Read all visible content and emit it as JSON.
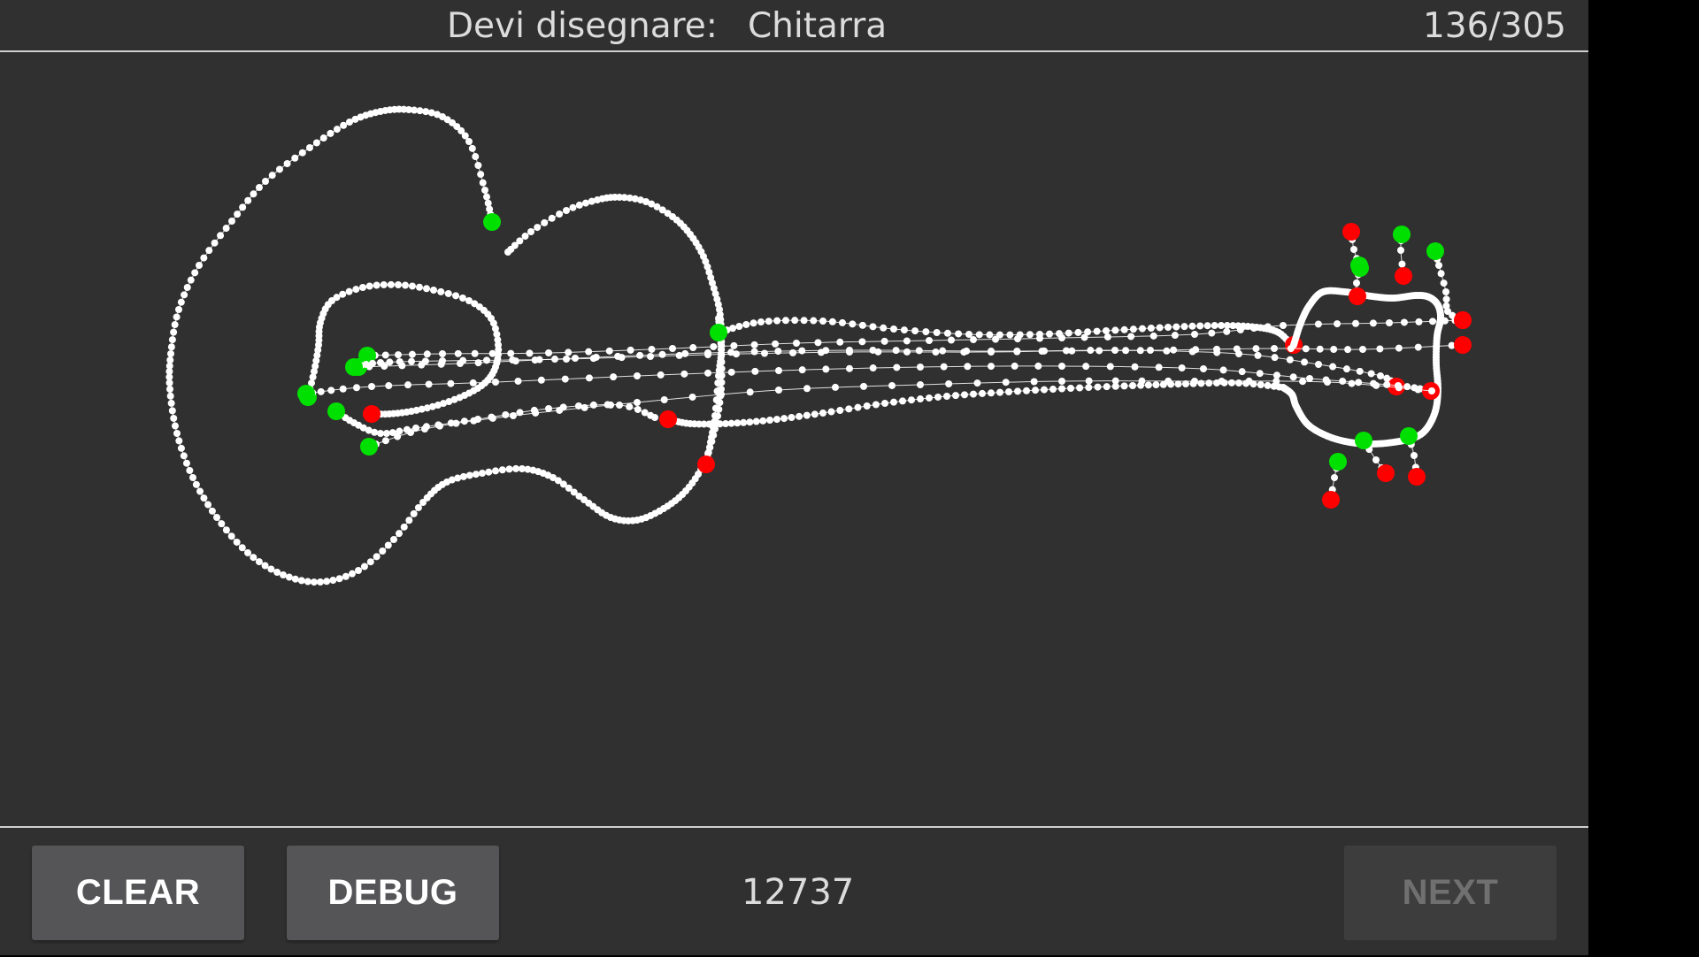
{
  "header": {
    "prompt_label": "Devi disegnare:",
    "prompt_word": "Chitarra",
    "counter": "136/305"
  },
  "footer": {
    "clear_label": "CLEAR",
    "debug_label": "DEBUG",
    "score": "12737",
    "next_label": "NEXT"
  },
  "colors": {
    "background": "#303030",
    "stroke": "#ffffff",
    "stroke_start": "#00e000",
    "stroke_end": "#ff0000"
  }
}
